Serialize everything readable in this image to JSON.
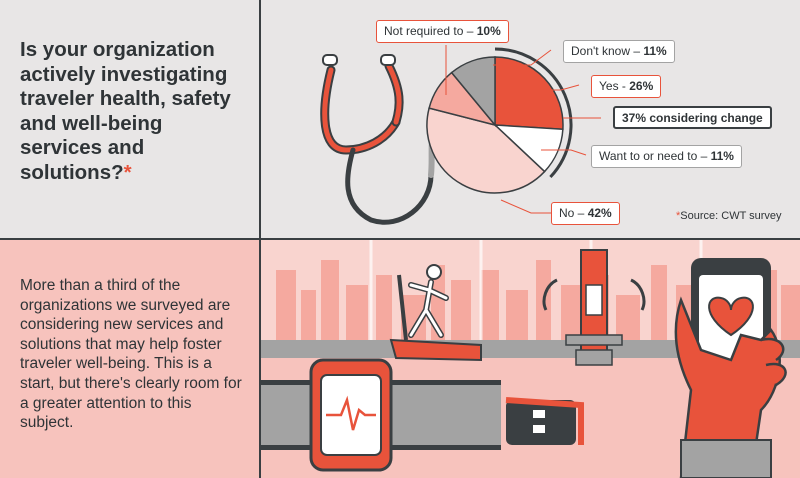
{
  "question": {
    "text": "Is your organization actively investigating traveler health, safety and well-being services and solutions?",
    "asterisk": "*"
  },
  "source": {
    "asterisk": "*",
    "text": "Source: CWT survey"
  },
  "body_text": "More than a third of the organizations we surveyed are considering new services and solutions that may help foster traveler well-being. This is a start, but there's clearly room for a greater attention to this subject.",
  "colors": {
    "accent": "#e8533b",
    "pink": "#f7c3bd",
    "light_pink": "#f9d4cf",
    "dark": "#3a3f42",
    "gray": "#a3a3a3",
    "panel_bg": "#e8e6e6"
  },
  "chart_data": {
    "type": "pie",
    "slices": [
      {
        "label": "Yes - ",
        "value_label": "26%",
        "value": 26,
        "color": "#e8533b"
      },
      {
        "label": "Want to or need to – ",
        "value_label": "11%",
        "value": 11,
        "color": "#ffffff"
      },
      {
        "label": "No – ",
        "value_label": "42%",
        "value": 42,
        "color": "#f9d4cf"
      },
      {
        "label": "Not required to – ",
        "value_label": "10%",
        "value": 10,
        "color": "#f5a99f"
      },
      {
        "label": "Don't know – ",
        "value_label": "11%",
        "value": 11,
        "color": "#a3a3a3"
      }
    ],
    "group_annotation": {
      "label": "37% considering change",
      "value": 37
    }
  },
  "icons": [
    "stethoscope-icon",
    "treadmill-icon",
    "weight-machine-icon",
    "smartwatch-icon",
    "smartphone-heart-icon",
    "hand-icon",
    "city-skyline-icon"
  ]
}
